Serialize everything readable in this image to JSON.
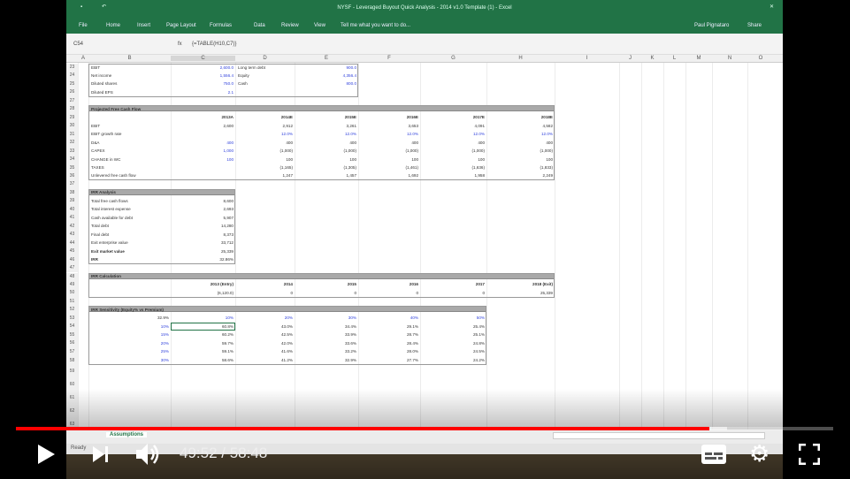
{
  "excel": {
    "title": "NYSF - Leveraged Buyout Quick Analysis - 2014 v1.0 Template (1) - Excel",
    "ribbon_tabs": [
      "File",
      "Home",
      "Insert",
      "Page Layout",
      "Formulas",
      "Data",
      "Review",
      "View"
    ],
    "tell_me": "Tell me what you want to do...",
    "user": "Paul Pignataro",
    "share": "Share",
    "name_box": "C54",
    "formula": "{=TABLE(H10,C7)}",
    "columns": [
      "A",
      "B",
      "C",
      "D",
      "E",
      "F",
      "G",
      "H",
      "I",
      "J",
      "K",
      "L",
      "M",
      "N",
      "O"
    ],
    "sheet_tab": "Assumptions",
    "status": "Ready",
    "rows": [
      {
        "r": 23,
        "cells": [
          [
            "B",
            "EBIT"
          ],
          [
            "C",
            "2,600.0",
            "blue"
          ],
          [
            "D",
            "Long term debt"
          ],
          [
            "E",
            "900.0",
            "blue"
          ]
        ]
      },
      {
        "r": 24,
        "cells": [
          [
            "B",
            "Net income"
          ],
          [
            "C",
            "1,556.4",
            "blue"
          ],
          [
            "D",
            "Equity"
          ],
          [
            "E",
            "4,356.4",
            "blue"
          ]
        ]
      },
      {
        "r": 25,
        "cells": [
          [
            "B",
            "Diluted shares"
          ],
          [
            "C",
            "750.0",
            "blue"
          ],
          [
            "D",
            "Cash"
          ],
          [
            "E",
            "800.0",
            "blue"
          ]
        ]
      },
      {
        "r": 26,
        "cells": [
          [
            "B",
            "Diluted EPS"
          ],
          [
            "C",
            "2.1",
            "blue"
          ]
        ]
      },
      {
        "r": 27,
        "cells": []
      },
      {
        "r": 28,
        "cells": [
          [
            "B",
            "Projected Free Cash Flow",
            "b"
          ]
        ]
      },
      {
        "r": 29,
        "cells": [
          [
            "C",
            "2013A",
            "b"
          ],
          [
            "D",
            "2014E",
            "b"
          ],
          [
            "E",
            "2015E",
            "b"
          ],
          [
            "F",
            "2016E",
            "b"
          ],
          [
            "G",
            "2017E",
            "b"
          ],
          [
            "H",
            "2018E",
            "b"
          ]
        ]
      },
      {
        "r": 30,
        "cells": [
          [
            "B",
            "EBIT"
          ],
          [
            "C",
            "2,600"
          ],
          [
            "D",
            "2,912"
          ],
          [
            "E",
            "3,261"
          ],
          [
            "F",
            "3,653"
          ],
          [
            "G",
            "4,091"
          ],
          [
            "H",
            "4,582"
          ]
        ]
      },
      {
        "r": 31,
        "cells": [
          [
            "B",
            "EBIT growth rate"
          ],
          [
            "D",
            "12.0%",
            "blue"
          ],
          [
            "E",
            "12.0%",
            "blue"
          ],
          [
            "F",
            "12.0%",
            "blue"
          ],
          [
            "G",
            "12.0%",
            "blue"
          ],
          [
            "H",
            "12.0%",
            "blue"
          ]
        ]
      },
      {
        "r": 32,
        "cells": [
          [
            "B",
            "D&A"
          ],
          [
            "C",
            "400",
            "blue"
          ],
          [
            "D",
            "400"
          ],
          [
            "E",
            "400"
          ],
          [
            "F",
            "400"
          ],
          [
            "G",
            "400"
          ],
          [
            "H",
            "400"
          ]
        ]
      },
      {
        "r": 33,
        "cells": [
          [
            "B",
            "CAPEX"
          ],
          [
            "C",
            "1,000",
            "blue"
          ],
          [
            "D",
            "(1,000)"
          ],
          [
            "E",
            "(1,000)"
          ],
          [
            "F",
            "(1,000)"
          ],
          [
            "G",
            "(1,000)"
          ],
          [
            "H",
            "(1,000)"
          ]
        ]
      },
      {
        "r": 34,
        "cells": [
          [
            "B",
            "CHANGE in WC"
          ],
          [
            "C",
            "100",
            "blue"
          ],
          [
            "D",
            "100"
          ],
          [
            "E",
            "100"
          ],
          [
            "F",
            "100"
          ],
          [
            "G",
            "100"
          ],
          [
            "H",
            "100"
          ]
        ]
      },
      {
        "r": 35,
        "cells": [
          [
            "B",
            "TAXES"
          ],
          [
            "D",
            "(1,165)"
          ],
          [
            "E",
            "(1,305)"
          ],
          [
            "F",
            "(1,461)"
          ],
          [
            "G",
            "(1,636)"
          ],
          [
            "H",
            "(1,833)"
          ]
        ]
      },
      {
        "r": 36,
        "cells": [
          [
            "B",
            "Unlevered free cash flow"
          ],
          [
            "D",
            "1,247"
          ],
          [
            "E",
            "1,457"
          ],
          [
            "F",
            "1,692"
          ],
          [
            "G",
            "1,958"
          ],
          [
            "H",
            "2,249"
          ]
        ]
      },
      {
        "r": 37,
        "cells": []
      },
      {
        "r": 38,
        "cells": [
          [
            "B",
            "IRR Analysis",
            "b"
          ]
        ]
      },
      {
        "r": 39,
        "cells": [
          [
            "B",
            "Total free cash flows"
          ],
          [
            "C",
            "8,600"
          ]
        ]
      },
      {
        "r": 40,
        "cells": [
          [
            "B",
            "Total interest expense"
          ],
          [
            "C",
            "2,693"
          ]
        ]
      },
      {
        "r": 41,
        "cells": [
          [
            "B",
            "Cash available for debt"
          ],
          [
            "C",
            "5,907"
          ]
        ]
      },
      {
        "r": 42,
        "cells": [
          [
            "B",
            "Total debt"
          ],
          [
            "C",
            "14,280"
          ]
        ]
      },
      {
        "r": 43,
        "cells": [
          [
            "B",
            "Final debt"
          ],
          [
            "C",
            "8,373"
          ]
        ]
      },
      {
        "r": 44,
        "cells": [
          [
            "B",
            "Exit enterprise value"
          ],
          [
            "C",
            "33,712"
          ]
        ]
      },
      {
        "r": 45,
        "cells": [
          [
            "B",
            "Exit market value",
            "b"
          ],
          [
            "C",
            "25,339"
          ]
        ]
      },
      {
        "r": 46,
        "cells": [
          [
            "B",
            "IRR",
            "b"
          ],
          [
            "C",
            "32.86%"
          ]
        ]
      },
      {
        "r": 47,
        "cells": []
      },
      {
        "r": 48,
        "cells": [
          [
            "B",
            "IRR Calculation",
            "b"
          ]
        ]
      },
      {
        "r": 49,
        "cells": [
          [
            "C",
            "2013 (Entry)",
            "b"
          ],
          [
            "D",
            "2014",
            "b"
          ],
          [
            "E",
            "2015",
            "b"
          ],
          [
            "F",
            "2016",
            "b"
          ],
          [
            "G",
            "2017",
            "b"
          ],
          [
            "H",
            "2018 (Exit)",
            "b"
          ]
        ]
      },
      {
        "r": 50,
        "cells": [
          [
            "C",
            "(6,120.0)"
          ],
          [
            "D",
            "0"
          ],
          [
            "E",
            "0"
          ],
          [
            "F",
            "0"
          ],
          [
            "G",
            "0"
          ],
          [
            "H",
            "25,339"
          ]
        ]
      },
      {
        "r": 51,
        "cells": []
      },
      {
        "r": 52,
        "cells": [
          [
            "B",
            "IRR Sensitivity (Equity% vs Premium)",
            "b"
          ]
        ]
      },
      {
        "r": 53,
        "cells": [
          [
            "B",
            "32.9%"
          ],
          [
            "C",
            "10%",
            "blue"
          ],
          [
            "D",
            "20%",
            "blue"
          ],
          [
            "E",
            "30%",
            "blue"
          ],
          [
            "F",
            "40%",
            "blue"
          ],
          [
            "G",
            "50%",
            "blue"
          ]
        ]
      },
      {
        "r": 54,
        "cells": [
          [
            "B",
            "10%",
            "blue"
          ],
          [
            "C",
            "60.8%"
          ],
          [
            "D",
            "43.0%"
          ],
          [
            "E",
            "34.4%"
          ],
          [
            "F",
            "29.1%"
          ],
          [
            "G",
            "25.4%"
          ]
        ]
      },
      {
        "r": 55,
        "cells": [
          [
            "B",
            "15%",
            "blue"
          ],
          [
            "C",
            "60.2%"
          ],
          [
            "D",
            "42.5%"
          ],
          [
            "E",
            "33.9%"
          ],
          [
            "F",
            "28.7%"
          ],
          [
            "G",
            "25.1%"
          ]
        ]
      },
      {
        "r": 56,
        "cells": [
          [
            "B",
            "20%",
            "blue"
          ],
          [
            "C",
            "59.7%"
          ],
          [
            "D",
            "42.0%"
          ],
          [
            "E",
            "33.6%"
          ],
          [
            "F",
            "28.4%"
          ],
          [
            "G",
            "24.8%"
          ]
        ]
      },
      {
        "r": 57,
        "cells": [
          [
            "B",
            "25%",
            "blue"
          ],
          [
            "C",
            "59.1%"
          ],
          [
            "D",
            "41.6%"
          ],
          [
            "E",
            "33.2%"
          ],
          [
            "F",
            "28.0%"
          ],
          [
            "G",
            "24.5%"
          ]
        ]
      },
      {
        "r": 58,
        "cells": [
          [
            "B",
            "30%",
            "blue"
          ],
          [
            "C",
            "58.6%"
          ],
          [
            "D",
            "41.2%"
          ],
          [
            "E",
            "32.9%"
          ],
          [
            "F",
            "27.7%"
          ],
          [
            "G",
            "24.2%"
          ]
        ]
      },
      {
        "r": 59,
        "cells": []
      },
      {
        "r": 60,
        "cells": []
      },
      {
        "r": 61,
        "cells": []
      },
      {
        "r": 62,
        "cells": []
      },
      {
        "r": 63,
        "cells": []
      }
    ]
  },
  "player": {
    "current_time": "49:52",
    "duration": "58:48",
    "time_label": "49:52 / 58:48",
    "progress": 0.848,
    "buffered": 0.87,
    "progress_color": "#ff0000",
    "icons": [
      "play-icon",
      "next-icon",
      "volume-icon",
      "captions-icon",
      "settings-icon",
      "fullscreen-icon"
    ]
  }
}
